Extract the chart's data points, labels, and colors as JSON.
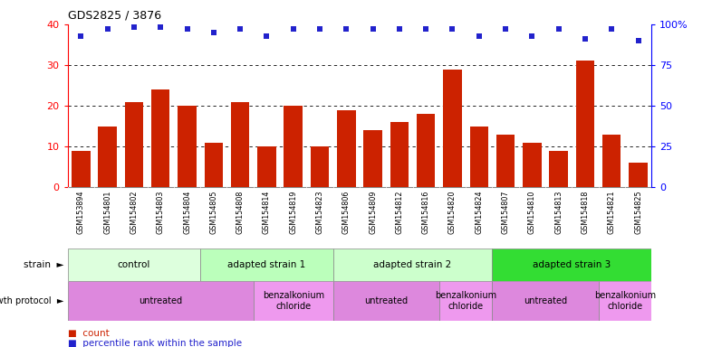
{
  "title": "GDS2825 / 3876",
  "samples": [
    "GSM153894",
    "GSM154801",
    "GSM154802",
    "GSM154803",
    "GSM154804",
    "GSM154805",
    "GSM154808",
    "GSM154814",
    "GSM154819",
    "GSM154823",
    "GSM154806",
    "GSM154809",
    "GSM154812",
    "GSM154816",
    "GSM154820",
    "GSM154824",
    "GSM154807",
    "GSM154810",
    "GSM154813",
    "GSM154818",
    "GSM154821",
    "GSM154825"
  ],
  "counts": [
    9,
    15,
    21,
    24,
    20,
    11,
    21,
    10,
    20,
    10,
    19,
    14,
    16,
    18,
    29,
    15,
    13,
    11,
    9,
    31,
    13,
    6
  ],
  "percentiles": [
    93,
    97,
    98,
    98,
    97,
    95,
    97,
    93,
    97,
    97,
    97,
    97,
    97,
    97,
    97,
    93,
    97,
    93,
    97,
    91,
    97,
    90
  ],
  "bar_color": "#cc2200",
  "dot_color": "#2222cc",
  "left_ylim": [
    0,
    40
  ],
  "right_ylim": [
    0,
    100
  ],
  "left_yticks": [
    0,
    10,
    20,
    30,
    40
  ],
  "right_yticks": [
    0,
    25,
    50,
    75,
    100
  ],
  "right_yticklabels": [
    "0",
    "25",
    "50",
    "75",
    "100%"
  ],
  "strain_groups": [
    {
      "label": "control",
      "start": 0,
      "end": 4,
      "color": "#ddffdd"
    },
    {
      "label": "adapted strain 1",
      "start": 5,
      "end": 9,
      "color": "#bbffbb"
    },
    {
      "label": "adapted strain 2",
      "start": 10,
      "end": 15,
      "color": "#ccffcc"
    },
    {
      "label": "adapted strain 3",
      "start": 16,
      "end": 21,
      "color": "#33dd33"
    }
  ],
  "protocol_groups": [
    {
      "label": "untreated",
      "start": 0,
      "end": 6,
      "color": "#dd88dd"
    },
    {
      "label": "benzalkonium\nchloride",
      "start": 7,
      "end": 9,
      "color": "#ee99ee"
    },
    {
      "label": "untreated",
      "start": 10,
      "end": 13,
      "color": "#dd88dd"
    },
    {
      "label": "benzalkonium\nchloride",
      "start": 14,
      "end": 15,
      "color": "#ee99ee"
    },
    {
      "label": "untreated",
      "start": 16,
      "end": 19,
      "color": "#dd88dd"
    },
    {
      "label": "benzalkonium\nchloride",
      "start": 20,
      "end": 21,
      "color": "#ee99ee"
    }
  ],
  "bg_color": "#ffffff",
  "tick_label_bg": "#e0e0e0"
}
